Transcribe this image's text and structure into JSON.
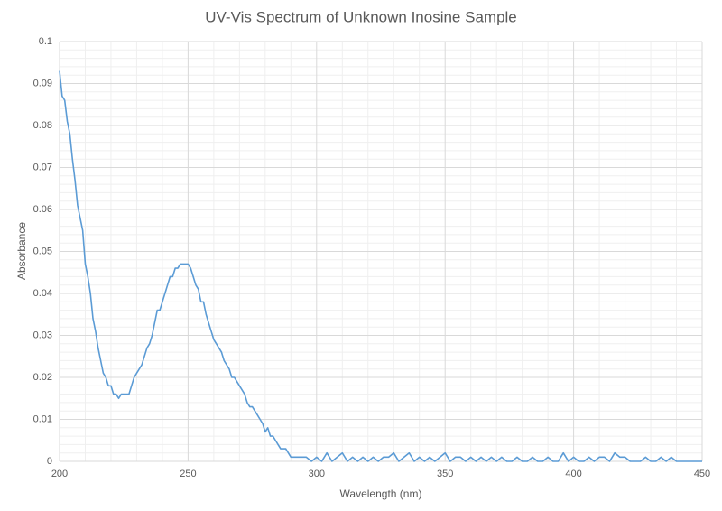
{
  "chart_data": {
    "type": "line",
    "title": "UV-Vis Spectrum of Unknown Inosine Sample",
    "xlabel": "Wavelength (nm)",
    "ylabel": "Absorbance",
    "xlim": [
      200,
      450
    ],
    "xticks": [
      200,
      250,
      300,
      350,
      400,
      450
    ],
    "ylim": [
      0,
      0.1
    ],
    "yticks": [
      0,
      0.01,
      0.02,
      0.03,
      0.04,
      0.05,
      0.06,
      0.07,
      0.08,
      0.09,
      0.1
    ],
    "grid": true,
    "minor_grid": true,
    "series": [
      {
        "color": "#5b9bd5",
        "x": [
          200,
          201,
          202,
          203,
          204,
          205,
          206,
          207,
          208,
          209,
          210,
          211,
          212,
          213,
          214,
          215,
          216,
          217,
          218,
          219,
          220,
          221,
          222,
          223,
          224,
          225,
          226,
          227,
          228,
          229,
          230,
          231,
          232,
          233,
          234,
          235,
          236,
          237,
          238,
          239,
          240,
          241,
          242,
          243,
          244,
          245,
          246,
          247,
          248,
          249,
          250,
          251,
          252,
          253,
          254,
          255,
          256,
          257,
          258,
          259,
          260,
          261,
          262,
          263,
          264,
          265,
          266,
          267,
          268,
          269,
          270,
          271,
          272,
          273,
          274,
          275,
          276,
          277,
          278,
          279,
          280,
          281,
          282,
          283,
          284,
          285,
          286,
          287,
          288,
          289,
          290,
          292,
          294,
          296,
          298,
          300,
          302,
          304,
          306,
          308,
          310,
          312,
          314,
          316,
          318,
          320,
          322,
          324,
          326,
          328,
          330,
          332,
          334,
          336,
          338,
          340,
          342,
          344,
          346,
          348,
          350,
          352,
          354,
          356,
          358,
          360,
          362,
          364,
          366,
          368,
          370,
          372,
          374,
          376,
          378,
          380,
          382,
          384,
          386,
          388,
          390,
          392,
          394,
          396,
          398,
          400,
          402,
          404,
          406,
          408,
          410,
          412,
          414,
          416,
          418,
          420,
          422,
          424,
          426,
          428,
          430,
          432,
          434,
          436,
          438,
          440,
          442,
          444,
          446,
          448,
          450
        ],
        "values": [
          0.093,
          0.087,
          0.086,
          0.081,
          0.078,
          0.072,
          0.067,
          0.061,
          0.058,
          0.055,
          0.047,
          0.044,
          0.04,
          0.034,
          0.031,
          0.027,
          0.024,
          0.021,
          0.02,
          0.018,
          0.018,
          0.016,
          0.016,
          0.015,
          0.016,
          0.016,
          0.016,
          0.016,
          0.018,
          0.02,
          0.021,
          0.022,
          0.023,
          0.025,
          0.027,
          0.028,
          0.03,
          0.033,
          0.036,
          0.036,
          0.038,
          0.04,
          0.042,
          0.044,
          0.044,
          0.046,
          0.046,
          0.047,
          0.047,
          0.047,
          0.047,
          0.046,
          0.044,
          0.042,
          0.041,
          0.038,
          0.038,
          0.035,
          0.033,
          0.031,
          0.029,
          0.028,
          0.027,
          0.026,
          0.024,
          0.023,
          0.022,
          0.02,
          0.02,
          0.019,
          0.018,
          0.017,
          0.016,
          0.014,
          0.013,
          0.013,
          0.012,
          0.011,
          0.01,
          0.009,
          0.007,
          0.008,
          0.006,
          0.006,
          0.005,
          0.004,
          0.003,
          0.003,
          0.003,
          0.002,
          0.001,
          0.001,
          0.001,
          0.001,
          0,
          0.001,
          0,
          0.002,
          0,
          0.001,
          0.002,
          0,
          0.001,
          0,
          0.001,
          0,
          0.001,
          0,
          0.001,
          0.001,
          0.002,
          0,
          0.001,
          0.002,
          0,
          0.001,
          0,
          0.001,
          0,
          0.001,
          0.002,
          0,
          0.001,
          0.001,
          0,
          0.001,
          0,
          0.001,
          0,
          0.001,
          0,
          0.001,
          0,
          0,
          0.001,
          0,
          0,
          0.001,
          0,
          0,
          0.001,
          0,
          0,
          0.002,
          0,
          0.001,
          0,
          0,
          0.001,
          0,
          0.001,
          0.001,
          0,
          0.002,
          0.001,
          0.001,
          0,
          0,
          0,
          0.001,
          0,
          0,
          0.001,
          0,
          0.001,
          0,
          0,
          0,
          0,
          0,
          0
        ]
      }
    ]
  }
}
